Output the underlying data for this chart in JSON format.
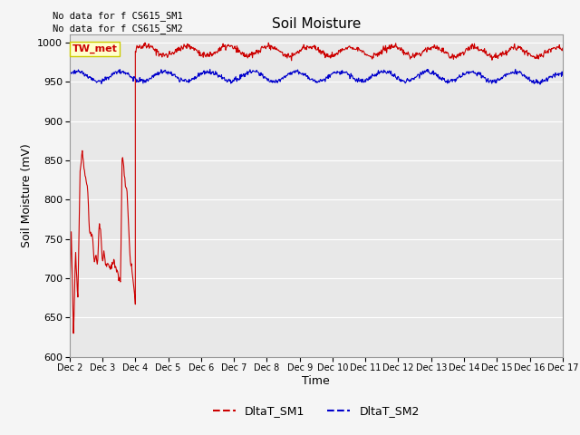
{
  "title": "Soil Moisture",
  "ylabel": "Soil Moisture (mV)",
  "xlabel": "Time",
  "ylim": [
    600,
    1010
  ],
  "background_color": "#e8e8e8",
  "no_data_text": [
    "No data for f CS615_SM1",
    "No data for f CS615_SM2"
  ],
  "tw_met_label": "TW_met",
  "sm1_color": "#cc0000",
  "sm2_color": "#0000cc",
  "xtick_labels": [
    "Dec 2",
    "Dec 3",
    "Dec 4",
    "Dec 5",
    "Dec 6",
    "Dec 7",
    "Dec 8",
    "Dec 9",
    "Dec 10",
    "Dec 11",
    "Dec 12",
    "Dec 13",
    "Dec 14",
    "Dec 15",
    "Dec 16",
    "Dec 17"
  ],
  "ytick_values": [
    600,
    650,
    700,
    750,
    800,
    850,
    900,
    950,
    1000
  ],
  "legend_labels": [
    "DltaT_SM1",
    "DltaT_SM2"
  ],
  "fig_bg": "#f5f5f5"
}
